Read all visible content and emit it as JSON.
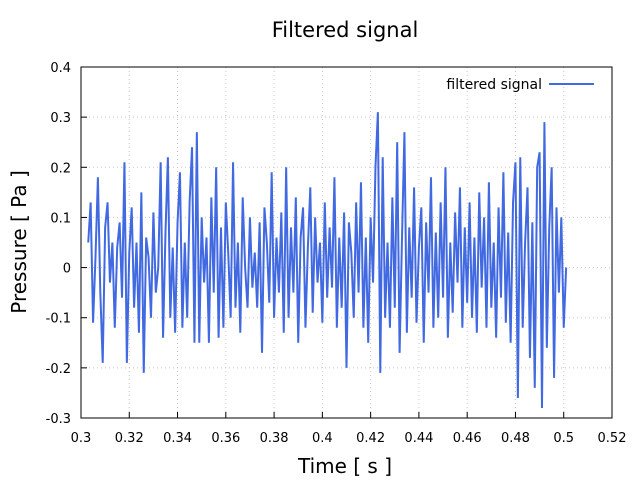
{
  "chart_data": {
    "type": "line",
    "title": "Filtered signal",
    "x_label": "Time [ s ]",
    "y_label": "Pressure [ Pa ]",
    "x": [
      0.303,
      0.304,
      0.305,
      0.306,
      0.307,
      0.308,
      0.309,
      0.31,
      0.311,
      0.312,
      0.313,
      0.314,
      0.315,
      0.316,
      0.317,
      0.318,
      0.319,
      0.32,
      0.321,
      0.322,
      0.323,
      0.324,
      0.325,
      0.326,
      0.327,
      0.328,
      0.329,
      0.33,
      0.331,
      0.332,
      0.333,
      0.334,
      0.335,
      0.336,
      0.337,
      0.338,
      0.339,
      0.34,
      0.341,
      0.342,
      0.343,
      0.344,
      0.345,
      0.346,
      0.347,
      0.348,
      0.349,
      0.35,
      0.351,
      0.352,
      0.353,
      0.354,
      0.355,
      0.356,
      0.357,
      0.358,
      0.359,
      0.36,
      0.361,
      0.362,
      0.363,
      0.364,
      0.365,
      0.366,
      0.367,
      0.368,
      0.369,
      0.37,
      0.371,
      0.372,
      0.373,
      0.374,
      0.375,
      0.376,
      0.377,
      0.378,
      0.379,
      0.38,
      0.381,
      0.382,
      0.383,
      0.384,
      0.385,
      0.386,
      0.387,
      0.388,
      0.389,
      0.39,
      0.391,
      0.392,
      0.393,
      0.394,
      0.395,
      0.396,
      0.397,
      0.398,
      0.399,
      0.4,
      0.401,
      0.402,
      0.403,
      0.404,
      0.405,
      0.406,
      0.407,
      0.408,
      0.409,
      0.41,
      0.411,
      0.412,
      0.413,
      0.414,
      0.415,
      0.416,
      0.417,
      0.418,
      0.419,
      0.42,
      0.421,
      0.422,
      0.423,
      0.424,
      0.425,
      0.426,
      0.427,
      0.428,
      0.429,
      0.43,
      0.431,
      0.432,
      0.433,
      0.434,
      0.435,
      0.436,
      0.437,
      0.438,
      0.439,
      0.44,
      0.441,
      0.442,
      0.443,
      0.444,
      0.445,
      0.446,
      0.447,
      0.448,
      0.449,
      0.45,
      0.451,
      0.452,
      0.453,
      0.454,
      0.455,
      0.456,
      0.457,
      0.458,
      0.459,
      0.46,
      0.461,
      0.462,
      0.463,
      0.464,
      0.465,
      0.466,
      0.467,
      0.468,
      0.469,
      0.47,
      0.471,
      0.472,
      0.473,
      0.474,
      0.475,
      0.476,
      0.477,
      0.478,
      0.479,
      0.48,
      0.481,
      0.482,
      0.483,
      0.484,
      0.485,
      0.486,
      0.487,
      0.488,
      0.489,
      0.49,
      0.491,
      0.492,
      0.493,
      0.494,
      0.495,
      0.496,
      0.497,
      0.498,
      0.499,
      0.5,
      0.501
    ],
    "series": [
      {
        "name": "filtered signal",
        "color": "#4169e1",
        "values": [
          0.05,
          0.13,
          -0.11,
          0.02,
          0.18,
          -0.05,
          -0.19,
          0.08,
          0.13,
          -0.03,
          0.05,
          -0.12,
          0.04,
          0.09,
          -0.06,
          0.21,
          -0.19,
          0.03,
          0.12,
          -0.08,
          0.05,
          -0.13,
          0.15,
          -0.21,
          0.06,
          0.02,
          -0.1,
          0.11,
          -0.05,
          0.0,
          0.21,
          -0.14,
          0.07,
          0.22,
          -0.1,
          0.04,
          -0.13,
          0.09,
          0.19,
          -0.12,
          0.05,
          -0.1,
          0.13,
          0.24,
          -0.15,
          0.27,
          -0.15,
          0.1,
          -0.03,
          0.06,
          -0.15,
          0.14,
          -0.05,
          0.2,
          -0.14,
          0.08,
          -0.12,
          0.13,
          0.03,
          -0.1,
          0.21,
          -0.08,
          0.05,
          -0.13,
          0.14,
          0.0,
          -0.08,
          0.1,
          -0.04,
          0.03,
          -0.08,
          0.09,
          -0.17,
          0.12,
          0.05,
          -0.07,
          0.19,
          -0.1,
          0.06,
          -0.05,
          0.11,
          -0.13,
          0.2,
          -0.1,
          0.08,
          -0.05,
          0.14,
          -0.15,
          0.06,
          0.12,
          -0.12,
          0.04,
          0.16,
          -0.09,
          0.1,
          -0.03,
          0.05,
          -0.11,
          0.13,
          -0.06,
          0.08,
          -0.04,
          0.18,
          -0.12,
          0.06,
          -0.08,
          0.11,
          -0.2,
          0.09,
          0.03,
          -0.1,
          0.13,
          -0.05,
          0.17,
          -0.12,
          0.06,
          -0.15,
          0.1,
          -0.03,
          0.2,
          0.31,
          -0.21,
          0.22,
          -0.1,
          0.05,
          -0.12,
          0.14,
          -0.08,
          0.25,
          -0.17,
          0.06,
          0.27,
          -0.13,
          0.08,
          -0.06,
          0.16,
          -0.11,
          0.04,
          0.12,
          -0.15,
          0.09,
          -0.05,
          0.18,
          -0.12,
          0.07,
          -0.1,
          0.13,
          -0.06,
          0.2,
          -0.14,
          0.05,
          -0.09,
          0.11,
          -0.03,
          0.16,
          -0.12,
          0.08,
          -0.07,
          0.13,
          -0.1,
          0.06,
          -0.13,
          0.15,
          -0.04,
          0.1,
          -0.12,
          0.17,
          -0.08,
          0.05,
          -0.14,
          0.12,
          -0.06,
          0.19,
          -0.11,
          0.07,
          -0.15,
          0.13,
          0.21,
          -0.26,
          0.22,
          -0.12,
          0.05,
          0.16,
          -0.18,
          0.09,
          -0.24,
          0.2,
          0.23,
          -0.28,
          0.29,
          -0.16,
          0.08,
          0.2,
          -0.22,
          0.12,
          -0.05,
          0.1,
          -0.12,
          0.0
        ]
      }
    ],
    "xlim": [
      0.3,
      0.52
    ],
    "xticks": [
      0.3,
      0.32,
      0.34,
      0.36,
      0.38,
      0.4,
      0.42,
      0.44,
      0.46,
      0.48,
      0.5,
      0.52
    ],
    "ylim": [
      -0.3,
      0.4
    ],
    "yticks": [
      -0.3,
      -0.2,
      -0.1,
      0,
      0.1,
      0.2,
      0.3,
      0.4
    ],
    "grid": true,
    "legend": "top-right"
  }
}
